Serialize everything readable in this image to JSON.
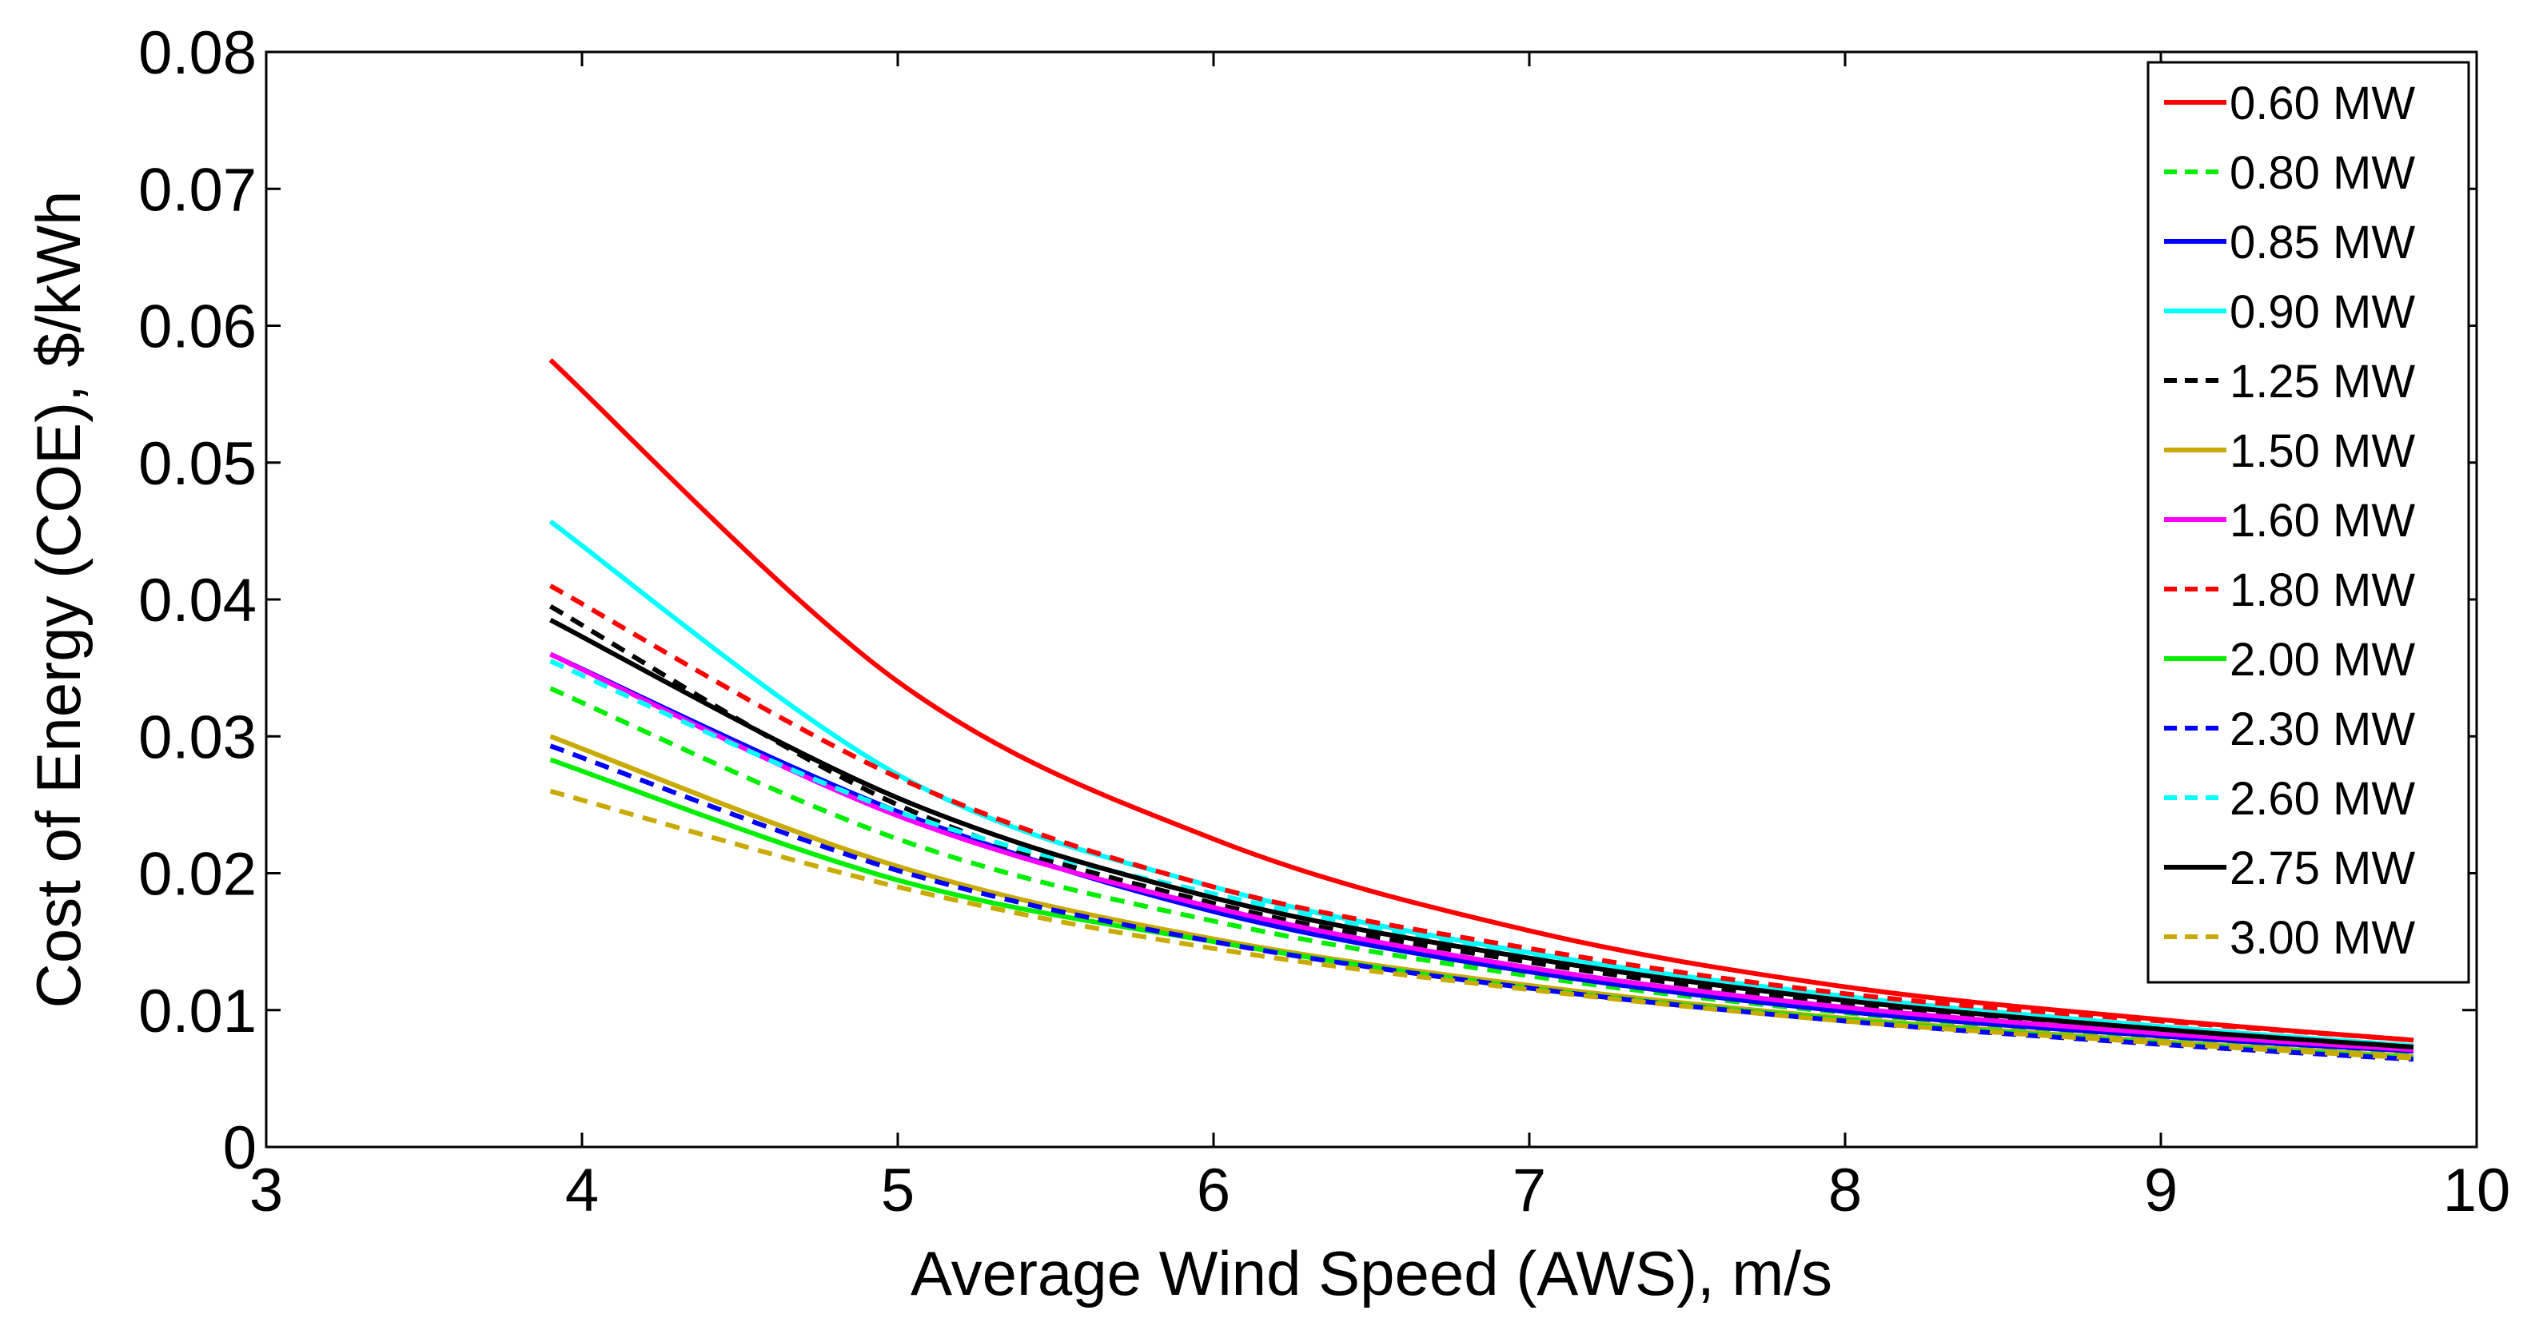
{
  "chart_data": {
    "type": "line",
    "title": "",
    "xlabel": "Average Wind Speed (AWS), m/s",
    "ylabel": "Cost of Energy (COE), $/kWh",
    "xlim": [
      3,
      10
    ],
    "ylim": [
      0,
      0.08
    ],
    "xticks": [
      3,
      4,
      5,
      6,
      7,
      8,
      9,
      10
    ],
    "xtick_labels": [
      "3",
      "4",
      "5",
      "6",
      "7",
      "8",
      "9",
      "10"
    ],
    "yticks": [
      0,
      0.01,
      0.02,
      0.03,
      0.04,
      0.05,
      0.06,
      0.07,
      0.08
    ],
    "ytick_labels": [
      "0",
      "0.01",
      "0.02",
      "0.03",
      "0.04",
      "0.05",
      "0.06",
      "0.07",
      "0.08"
    ],
    "grid": false,
    "legend_position": "top-right",
    "x": [
      3.9,
      5,
      6,
      7,
      8,
      9,
      9.8
    ],
    "series": [
      {
        "name": "0.60 MW",
        "color": "#ff0000",
        "dash": "solid",
        "values": [
          0.0575,
          0.034,
          0.0225,
          0.0158,
          0.0117,
          0.0093,
          0.0078
        ]
      },
      {
        "name": "0.80 MW",
        "color": "#00ee00",
        "dash": "dashed",
        "values": [
          0.0335,
          0.0225,
          0.0165,
          0.0125,
          0.0098,
          0.008,
          0.0068
        ]
      },
      {
        "name": "0.85 MW",
        "color": "#0000ff",
        "dash": "solid",
        "values": [
          0.036,
          0.0245,
          0.0172,
          0.0128,
          0.0099,
          0.0081,
          0.007
        ]
      },
      {
        "name": "0.90 MW",
        "color": "#00ffff",
        "dash": "solid",
        "values": [
          0.0457,
          0.0272,
          0.019,
          0.0142,
          0.011,
          0.0088,
          0.0074
        ]
      },
      {
        "name": "1.25 MW",
        "color": "#000000",
        "dash": "dashed",
        "values": [
          0.0395,
          0.025,
          0.0178,
          0.0135,
          0.0105,
          0.0085,
          0.0072
        ]
      },
      {
        "name": "1.50 MW",
        "color": "#c8aa00",
        "dash": "solid",
        "values": [
          0.03,
          0.0205,
          0.0152,
          0.0118,
          0.0094,
          0.0077,
          0.0066
        ]
      },
      {
        "name": "1.60 MW",
        "color": "#ff00ff",
        "dash": "solid",
        "values": [
          0.036,
          0.0242,
          0.0175,
          0.0131,
          0.0102,
          0.0083,
          0.0071
        ]
      },
      {
        "name": "1.80 MW",
        "color": "#ff0000",
        "dash": "dashed",
        "values": [
          0.041,
          0.027,
          0.019,
          0.0145,
          0.0112,
          0.0092,
          0.0078
        ]
      },
      {
        "name": "2.00 MW",
        "color": "#00ee00",
        "dash": "solid",
        "values": [
          0.0283,
          0.0195,
          0.015,
          0.0116,
          0.0093,
          0.0076,
          0.0065
        ]
      },
      {
        "name": "2.30 MW",
        "color": "#0000ff",
        "dash": "dashed",
        "values": [
          0.0293,
          0.0202,
          0.015,
          0.0116,
          0.0092,
          0.0075,
          0.0064
        ]
      },
      {
        "name": "2.60 MW",
        "color": "#00ffff",
        "dash": "dashed",
        "values": [
          0.0355,
          0.0245,
          0.0185,
          0.014,
          0.0108,
          0.0087,
          0.0074
        ]
      },
      {
        "name": "2.75 MW",
        "color": "#000000",
        "dash": "solid",
        "values": [
          0.0385,
          0.0255,
          0.0182,
          0.0138,
          0.0107,
          0.0086,
          0.0073
        ]
      },
      {
        "name": "3.00 MW",
        "color": "#c8aa00",
        "dash": "dashed",
        "values": [
          0.026,
          0.019,
          0.0145,
          0.0115,
          0.0092,
          0.0076,
          0.0065
        ]
      }
    ]
  }
}
